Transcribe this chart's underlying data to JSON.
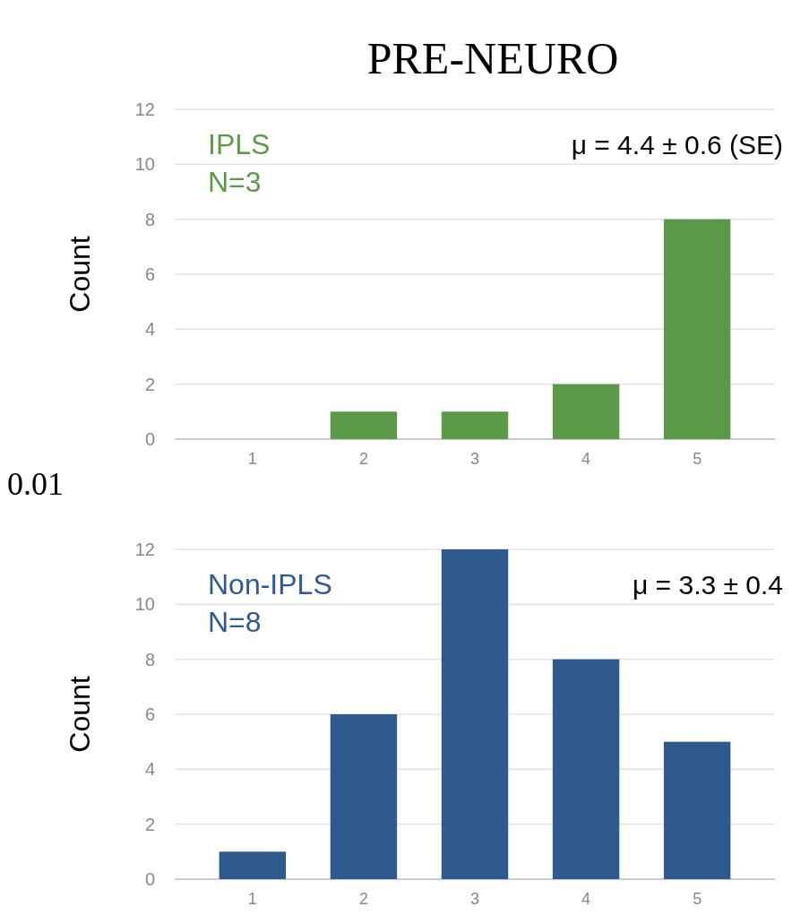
{
  "chart_data": [
    {
      "type": "bar",
      "title": "PRE-NEURO",
      "ylabel": "Count",
      "categories": [
        "1",
        "2",
        "3",
        "4",
        "5"
      ],
      "values": [
        0,
        1,
        1,
        2,
        8
      ],
      "color": "#5b9a48",
      "ylim": [
        0,
        12
      ],
      "yticks": [
        0,
        2,
        4,
        6,
        8,
        10,
        12
      ],
      "grid": "y",
      "annotations": [
        "IPLS",
        "N=3",
        "μ = 4.4 ± 0.6 (SE)",
        "0.01"
      ]
    },
    {
      "type": "bar",
      "ylabel": "Count",
      "categories": [
        "1",
        "2",
        "3",
        "4",
        "5"
      ],
      "values": [
        1,
        6,
        12,
        8,
        5
      ],
      "color": "#2f5a8e",
      "ylim": [
        0,
        12
      ],
      "yticks": [
        0,
        2,
        4,
        6,
        8,
        10,
        12
      ],
      "grid": "y",
      "annotations": [
        "Non-IPLS",
        "N=8",
        "μ = 3.3 ± 0.4"
      ]
    }
  ]
}
